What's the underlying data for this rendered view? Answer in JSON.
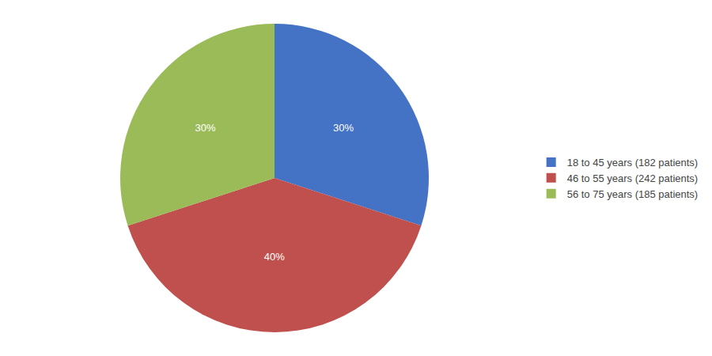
{
  "chart_data": {
    "type": "pie",
    "categories": [
      "18 to 45 years (182 patients)",
      "46 to 55 years (242 patients)",
      "56 to 75 years (185 patients)"
    ],
    "values": [
      30,
      40,
      30
    ],
    "value_labels": [
      "30%",
      "40%",
      "30%"
    ],
    "colors": [
      "#4472C4",
      "#C0504D",
      "#9BBB59"
    ],
    "data_labels": true,
    "legend": "right"
  }
}
